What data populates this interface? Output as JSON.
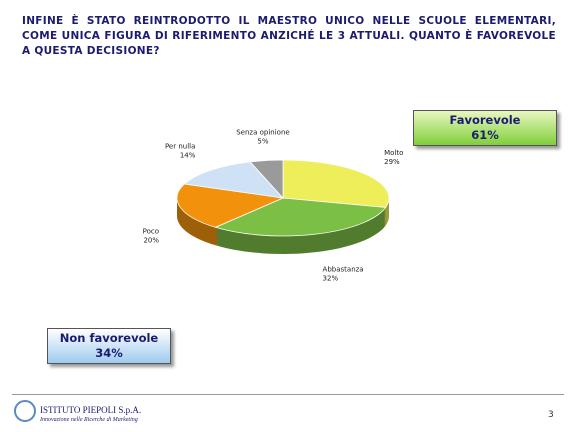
{
  "chart_data": {
    "type": "pie",
    "title": "INFINE È STATO REINTRODOTTO IL MAESTRO UNICO NELLE SCUOLE ELEMENTARI, COME UNICA FIGURA DI RIFERIMENTO ANZICHÉ LE 3 ATTUALI. QUANTO È FAVOREVOLE A QUESTA DECISIONE?",
    "categories": [
      "Molto",
      "Abbastanza",
      "Poco",
      "Per nulla",
      "Senza opinione"
    ],
    "values": [
      29,
      32,
      20,
      14,
      5
    ],
    "value_labels": [
      "29%",
      "32%",
      "20%",
      "14%",
      "5%"
    ],
    "colors": [
      "#eeee5a",
      "#7cbf45",
      "#f2920c",
      "#cfe2f5",
      "#9a9a9a"
    ],
    "summary": {
      "labels": [
        "Favorevole",
        "Non favorevole"
      ],
      "values": [
        61,
        34
      ],
      "value_labels": [
        "61%",
        "34%"
      ]
    }
  },
  "footer": {
    "company": "ISTITUTO PIEPOLI S.p.A.",
    "tagline": "Innovazione nelle Ricerche di Marketing",
    "page": 3
  }
}
